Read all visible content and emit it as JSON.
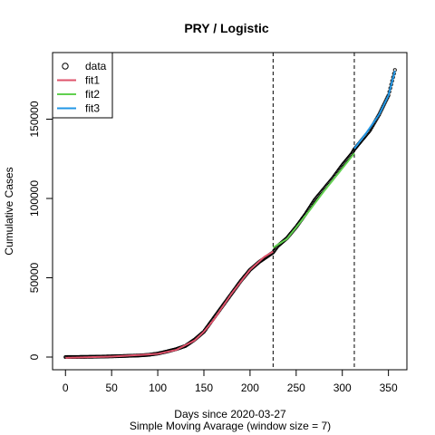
{
  "chart_data": {
    "type": "line",
    "title": "PRY / Logistic",
    "xlabel": "Days since 2020-03-27",
    "xlabel2": "Simple Moving Avarage (window size = 7)",
    "ylabel": "Cumulative Cases",
    "xlim": [
      -14,
      370
    ],
    "ylim": [
      -8000,
      192000
    ],
    "x_ticks": [
      0,
      50,
      100,
      150,
      200,
      250,
      300,
      350
    ],
    "y_ticks": [
      0,
      50000,
      100000,
      150000
    ],
    "vlines": [
      225,
      313
    ],
    "legend": {
      "placement": "top-left",
      "entries": [
        {
          "label": "data",
          "kind": "point",
          "color": "#000000"
        },
        {
          "label": "fit1",
          "kind": "line",
          "color": "#DF536B"
        },
        {
          "label": "fit2",
          "kind": "line",
          "color": "#61D04F"
        },
        {
          "label": "fit3",
          "kind": "line",
          "color": "#2297E6"
        }
      ]
    },
    "data_points": [
      [
        0,
        0
      ],
      [
        20,
        100
      ],
      [
        40,
        300
      ],
      [
        60,
        600
      ],
      [
        80,
        1000
      ],
      [
        90,
        1400
      ],
      [
        100,
        2200
      ],
      [
        110,
        3500
      ],
      [
        120,
        5000
      ],
      [
        130,
        7000
      ],
      [
        140,
        11000
      ],
      [
        150,
        16000
      ],
      [
        160,
        24000
      ],
      [
        170,
        32000
      ],
      [
        180,
        40000
      ],
      [
        190,
        48000
      ],
      [
        200,
        55000
      ],
      [
        210,
        60000
      ],
      [
        220,
        64000
      ],
      [
        225,
        66000
      ],
      [
        230,
        70000
      ],
      [
        240,
        75000
      ],
      [
        250,
        82000
      ],
      [
        260,
        90000
      ],
      [
        270,
        99000
      ],
      [
        280,
        106000
      ],
      [
        290,
        113000
      ],
      [
        300,
        121000
      ],
      [
        310,
        128000
      ],
      [
        313,
        131000
      ],
      [
        320,
        136000
      ],
      [
        330,
        143000
      ],
      [
        340,
        153000
      ],
      [
        350,
        165000
      ],
      [
        357,
        181000
      ]
    ],
    "series": [
      {
        "name": "fit1",
        "color": "#DF536B",
        "points": [
          [
            0,
            -500
          ],
          [
            50,
            300
          ],
          [
            100,
            2000
          ],
          [
            120,
            4500
          ],
          [
            140,
            10500
          ],
          [
            150,
            16000
          ],
          [
            160,
            23000
          ],
          [
            180,
            40000
          ],
          [
            200,
            55000
          ],
          [
            215,
            63000
          ],
          [
            225,
            66500
          ]
        ]
      },
      {
        "name": "fit2",
        "color": "#61D04F",
        "points": [
          [
            225,
            69000
          ],
          [
            240,
            74500
          ],
          [
            260,
            89000
          ],
          [
            280,
            104500
          ],
          [
            300,
            119000
          ],
          [
            313,
            128500
          ]
        ]
      },
      {
        "name": "fit3",
        "color": "#2297E6",
        "points": [
          [
            313,
            131500
          ],
          [
            325,
            140500
          ],
          [
            340,
            153000
          ],
          [
            350,
            165000
          ],
          [
            357,
            180500
          ]
        ]
      }
    ]
  }
}
